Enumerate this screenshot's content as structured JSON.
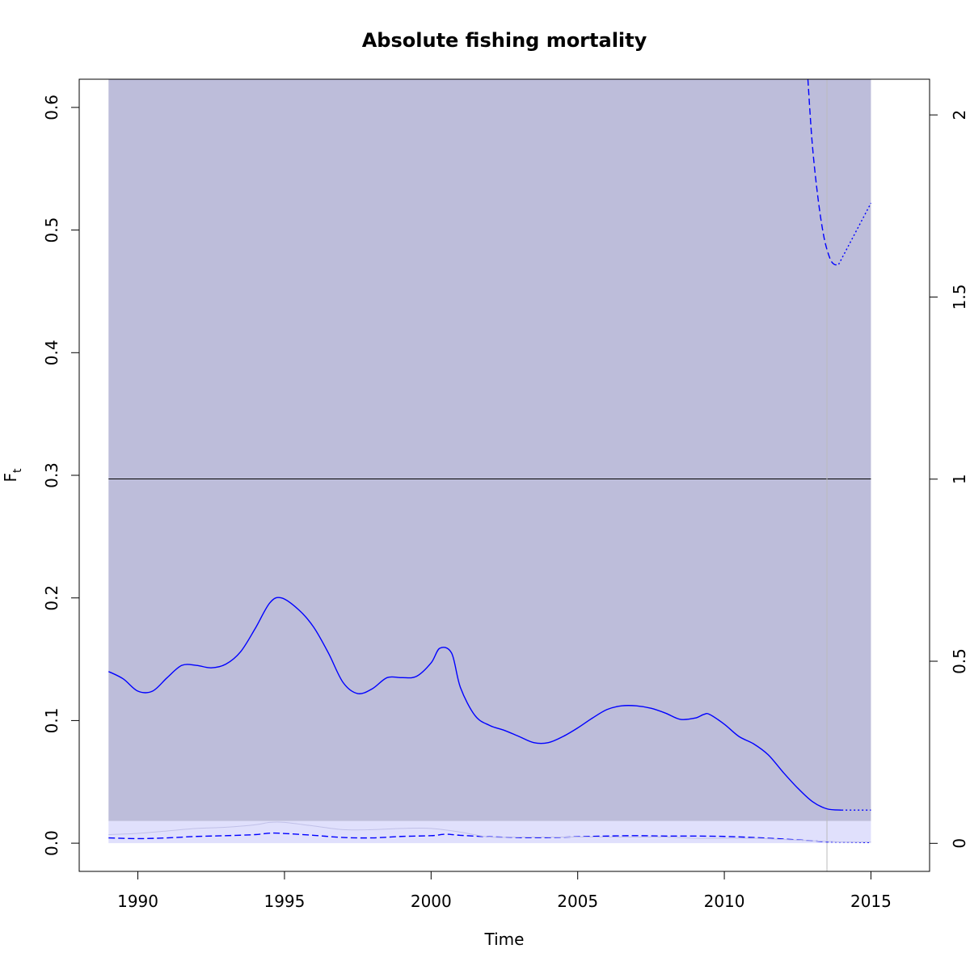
{
  "chart_data": {
    "type": "line",
    "title": "Absolute fishing mortality",
    "xlabel": "Time",
    "ylabel_main": "F",
    "ylabel_sub": "t",
    "xlim": [
      1988,
      2017
    ],
    "ylim": [
      -0.023,
      0.623
    ],
    "y2lim": [
      -0.077,
      2.098
    ],
    "x_ticks": [
      1990,
      1995,
      2000,
      2005,
      2010,
      2015
    ],
    "y_ticks": [
      0.0,
      0.1,
      0.2,
      0.3,
      0.4,
      0.5,
      0.6
    ],
    "y_tick_labels": [
      "0.0",
      "0.1",
      "0.2",
      "0.3",
      "0.4",
      "0.5",
      "0.6"
    ],
    "y2_ticks": [
      0,
      0.5,
      1,
      1.5,
      2
    ],
    "y2_tick_labels": [
      "0",
      "0.5",
      "1",
      "1.5",
      "2"
    ],
    "grid": false,
    "band_uncertainty": {
      "x0": 1989.0,
      "x1": 2015.0,
      "y0": 0.018,
      "y1": 0.623,
      "color": "#bdbdda"
    },
    "band_lower": {
      "x0": 1989.0,
      "x1": 2015.0,
      "y0": 0.0,
      "y1": 0.018,
      "color": "#e0e0fc"
    },
    "reference_line": {
      "y": 0.297,
      "x0": 1989.0,
      "x1": 2015.0,
      "color": "#000000"
    },
    "vertical_marker": {
      "x": 2013.5,
      "color": "#bbbbbb"
    },
    "series": [
      {
        "role": "F estimate",
        "style": "solid",
        "color": "#0000ff",
        "x": [
          1989.0,
          1989.5,
          1990.0,
          1990.5,
          1991.0,
          1991.5,
          1992.0,
          1992.5,
          1993.0,
          1993.5,
          1994.0,
          1994.5,
          1994.9,
          1995.5,
          1996.0,
          1996.5,
          1997.0,
          1997.5,
          1998.0,
          1998.5,
          1999.0,
          1999.5,
          2000.0,
          2000.3,
          2000.7,
          2001.0,
          2001.5,
          2002.0,
          2002.5,
          2003.0,
          2003.5,
          2004.0,
          2004.5,
          2005.0,
          2005.5,
          2006.0,
          2006.5,
          2007.0,
          2007.5,
          2008.0,
          2008.5,
          2009.0,
          2009.3,
          2009.5,
          2010.0,
          2010.5,
          2011.0,
          2011.5,
          2012.0,
          2012.5,
          2013.0,
          2013.5,
          2014.0
        ],
        "y": [
          0.14,
          0.134,
          0.124,
          0.124,
          0.135,
          0.145,
          0.145,
          0.143,
          0.146,
          0.156,
          0.175,
          0.196,
          0.2,
          0.19,
          0.176,
          0.155,
          0.131,
          0.122,
          0.126,
          0.135,
          0.135,
          0.136,
          0.147,
          0.159,
          0.155,
          0.127,
          0.104,
          0.096,
          0.092,
          0.087,
          0.082,
          0.082,
          0.087,
          0.094,
          0.102,
          0.109,
          0.112,
          0.112,
          0.11,
          0.106,
          0.101,
          0.102,
          0.105,
          0.105,
          0.097,
          0.087,
          0.081,
          0.072,
          0.058,
          0.045,
          0.034,
          0.028,
          0.027
        ]
      },
      {
        "role": "F forecast",
        "style": "dotted",
        "color": "#0000ff",
        "x": [
          2014.0,
          2015.0
        ],
        "y": [
          0.027,
          0.027
        ]
      },
      {
        "role": "F/Fmsy",
        "style": "dashed",
        "color": "#0000ff",
        "axis": "right",
        "x": [
          1989.0,
          1990.0,
          1991.0,
          1992.0,
          1993.0,
          1994.0,
          1994.5,
          1995.0,
          1996.0,
          1997.0,
          1998.0,
          1999.0,
          2000.0,
          2000.5,
          2001.0,
          2002.0,
          2003.0,
          2004.0,
          2005.0,
          2006.0,
          2007.0,
          2008.0,
          2009.0,
          2010.0,
          2011.0,
          2012.0,
          2013.0,
          2013.5
        ],
        "y": [
          0.015,
          0.013,
          0.015,
          0.019,
          0.021,
          0.024,
          0.028,
          0.027,
          0.022,
          0.016,
          0.015,
          0.019,
          0.021,
          0.025,
          0.022,
          0.018,
          0.016,
          0.016,
          0.018,
          0.02,
          0.021,
          0.02,
          0.02,
          0.019,
          0.016,
          0.012,
          0.007,
          0.004
        ]
      },
      {
        "role": "F/Fmsy forecast",
        "style": "dotted",
        "color": "#0000ff",
        "axis": "right",
        "x": [
          2013.5,
          2015.0
        ],
        "y": [
          0.004,
          0.002
        ]
      },
      {
        "role": "Fmsy",
        "style": "dashed",
        "color": "#0000ff",
        "x": [
          2012.85,
          2013.0,
          2013.2,
          2013.4,
          2013.6,
          2013.75,
          2013.9
        ],
        "y": [
          0.623,
          0.57,
          0.525,
          0.494,
          0.477,
          0.472,
          0.472
        ]
      },
      {
        "role": "Fmsy forecast",
        "style": "dotted",
        "color": "#0000ff",
        "x": [
          2013.9,
          2015.0
        ],
        "y": [
          0.472,
          0.522
        ]
      },
      {
        "role": "lower CI",
        "style": "solid-thin",
        "color": "#c0c0e8",
        "x": [
          1989.0,
          1990.0,
          1991.0,
          1992.0,
          1993.0,
          1994.0,
          1994.5,
          1995.0,
          1996.0,
          1997.0,
          1998.0,
          1999.0,
          2000.0,
          2001.0,
          2002.0,
          2003.0,
          2004.0,
          2005.0,
          2006.0,
          2007.0,
          2008.0,
          2009.0,
          2010.0,
          2011.0,
          2012.0,
          2013.0,
          2014.0,
          2015.0
        ],
        "y": [
          0.007,
          0.008,
          0.01,
          0.012,
          0.013,
          0.015,
          0.017,
          0.017,
          0.014,
          0.011,
          0.011,
          0.012,
          0.012,
          0.009,
          0.005,
          0.005,
          0.005,
          0.005,
          0.005,
          0.005,
          0.005,
          0.004,
          0.004,
          0.004,
          0.003,
          0.002,
          0.001,
          0.001
        ]
      }
    ]
  }
}
